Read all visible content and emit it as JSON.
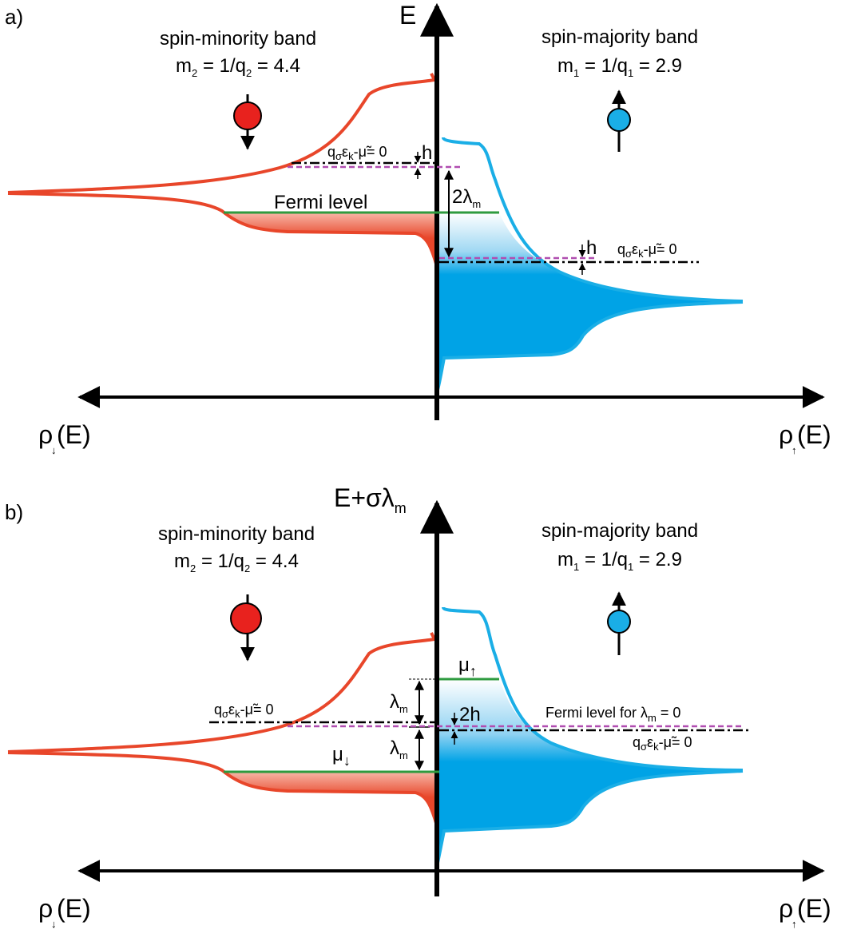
{
  "colors": {
    "minority": "#E8462A",
    "minority_fill": "#E8462A",
    "majority": "#1AAEE6",
    "majority_fill": "#00A3E6",
    "fermi": "#2E9B3F",
    "dashed_level": "#B04DB0",
    "axis": "#000000"
  },
  "panels": [
    {
      "label": "a)",
      "y_axis": {
        "main": "E",
        "sub": ""
      },
      "minority": {
        "title": "spin-minority band",
        "eq": [
          "m",
          "2",
          " = 1/q",
          "2",
          " = 4.4"
        ]
      },
      "majority": {
        "title": "spin-majority band",
        "eq": [
          "m",
          "1",
          " = 1/q",
          "1",
          " = 2.9"
        ]
      },
      "x_left": {
        "main": "ρ",
        "sub": "↓",
        "tail": "(E)"
      },
      "x_right": {
        "main": "ρ",
        "sub": "↑",
        "tail": "(E)"
      },
      "fermi_label": "Fermi level",
      "gap_label": {
        "main": "2λ",
        "sub": "m"
      },
      "h_label_upper": "h",
      "h_label_lower": "h",
      "cond_upper": {
        "a": "q",
        "b": "σ",
        "c": "ε",
        "d": "k",
        "e": "-μ̃= 0"
      },
      "cond_lower": {
        "a": "q",
        "b": "σ",
        "c": "ε",
        "d": "k",
        "e": "-μ̃= 0"
      }
    },
    {
      "label": "b)",
      "y_axis": {
        "main": "E+σλ",
        "sub": "m"
      },
      "minority": {
        "title": "spin-minority band",
        "eq": [
          "m",
          "2",
          " = 1/q",
          "2",
          " = 4.4"
        ]
      },
      "majority": {
        "title": "spin-majority band",
        "eq": [
          "m",
          "1",
          " = 1/q",
          "1",
          " = 2.9"
        ]
      },
      "x_left": {
        "main": "ρ",
        "sub": "↓",
        "tail": "(E)"
      },
      "x_right": {
        "main": "ρ",
        "sub": "↑",
        "tail": "(E)"
      },
      "mu_up": {
        "main": "μ",
        "sub": "↑"
      },
      "mu_down": {
        "main": "μ",
        "sub": "↓"
      },
      "lambda_upper": {
        "main": "λ",
        "sub": "m"
      },
      "lambda_lower": {
        "main": "λ",
        "sub": "m"
      },
      "two_h": "2h",
      "fermi_zero": {
        "a": "Fermi level for ",
        "b": "λ",
        "c": "m",
        "d": " = 0"
      },
      "cond_left": {
        "a": "q",
        "b": "σ",
        "c": "ε",
        "d": "k",
        "e": "-μ̃= 0"
      },
      "cond_right": {
        "a": "q",
        "b": "σ",
        "c": "ε",
        "d": "k",
        "e": "-μ̃= 0"
      }
    }
  ]
}
